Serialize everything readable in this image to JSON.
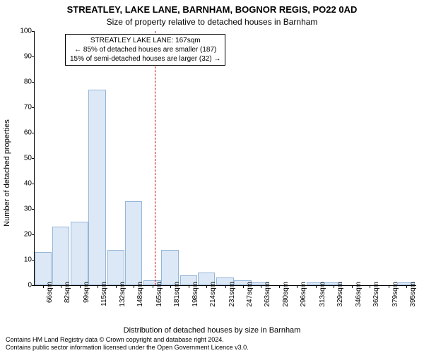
{
  "title_main": "STREATLEY, LAKE LANE, BARNHAM, BOGNOR REGIS, PO22 0AD",
  "title_sub": "Size of property relative to detached houses in Barnham",
  "annotation": {
    "line1": "STREATLEY LAKE LANE: 167sqm",
    "line2": "← 85% of detached houses are smaller (187)",
    "line3": "15% of semi-detached houses are larger (32) →"
  },
  "y_label": "Number of detached properties",
  "x_label": "Distribution of detached houses by size in Barnham",
  "footer_line1": "Contains HM Land Registry data © Crown copyright and database right 2024.",
  "footer_line2": "Contains public sector information licensed under the Open Government Licence v3.0.",
  "chart": {
    "type": "histogram",
    "ylim": [
      0,
      100
    ],
    "ytick_step": 10,
    "x_min": 58,
    "x_max": 404,
    "x_ticks": [
      66,
      82,
      99,
      115,
      132,
      148,
      165,
      181,
      198,
      214,
      231,
      247,
      263,
      280,
      296,
      313,
      329,
      346,
      362,
      379,
      395
    ],
    "x_tick_suffix": "sqm",
    "bin_width_sqm": 16.5,
    "bar_fill": "#dce8f6",
    "bar_stroke": "#96b6d8",
    "background": "#ffffff",
    "reference_line_x": 167,
    "reference_line_color": "#c00000",
    "bars": [
      {
        "x": 66,
        "h": 13
      },
      {
        "x": 82,
        "h": 23
      },
      {
        "x": 99,
        "h": 25
      },
      {
        "x": 115,
        "h": 77
      },
      {
        "x": 132,
        "h": 14
      },
      {
        "x": 148,
        "h": 33
      },
      {
        "x": 165,
        "h": 2
      },
      {
        "x": 181,
        "h": 14
      },
      {
        "x": 198,
        "h": 4
      },
      {
        "x": 214,
        "h": 5
      },
      {
        "x": 231,
        "h": 3
      },
      {
        "x": 247,
        "h": 2
      },
      {
        "x": 263,
        "h": 1
      },
      {
        "x": 280,
        "h": 0
      },
      {
        "x": 296,
        "h": 0
      },
      {
        "x": 313,
        "h": 1
      },
      {
        "x": 329,
        "h": 1
      },
      {
        "x": 346,
        "h": 0
      },
      {
        "x": 362,
        "h": 0
      },
      {
        "x": 379,
        "h": 0
      },
      {
        "x": 395,
        "h": 1
      }
    ]
  }
}
